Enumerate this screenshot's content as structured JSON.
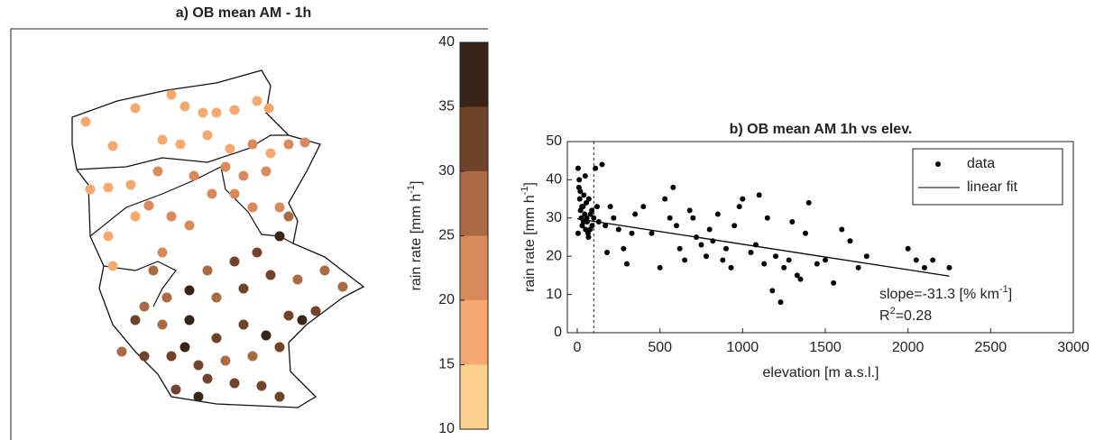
{
  "chart_data": [
    {
      "type": "map",
      "title": "a) OB mean AM - 1h",
      "values": [
        18,
        16,
        17,
        15,
        17,
        18,
        17,
        17,
        16,
        15,
        17,
        18,
        19,
        18,
        20,
        19,
        20,
        21,
        16,
        15,
        18,
        20,
        20,
        21,
        22,
        21,
        22,
        17,
        19,
        20,
        22,
        21,
        21,
        22,
        23,
        19,
        21,
        30,
        36,
        28,
        30,
        27,
        38,
        26,
        28,
        27,
        29,
        31,
        33,
        29,
        27,
        28,
        30,
        34,
        38,
        32,
        30,
        35,
        29,
        30,
        28,
        30,
        31,
        32,
        29,
        28,
        30,
        34,
        30,
        31,
        35,
        33,
        30,
        36,
        36
      ],
      "colorbar": {
        "label": [
          "rain rate [mm h",
          "-1",
          "]"
        ],
        "levels": [
          10,
          15,
          20,
          25,
          30,
          35,
          40
        ],
        "ticks": [
          10,
          15,
          20,
          25,
          30,
          35,
          40
        ],
        "colors": [
          "#fdd08b",
          "#f6a86f",
          "#d9895a",
          "#aa6a44",
          "#70432a",
          "#3a2417"
        ]
      }
    },
    {
      "type": "scatter",
      "title": "b) OB mean AM 1h vs elev.",
      "xlabel": "elevation [m a.s.l.]",
      "ylabel": [
        "rain rate [mm h",
        "-1",
        "]"
      ],
      "xlim": [
        -60,
        3000
      ],
      "ylim": [
        0,
        50
      ],
      "xticks": [
        0,
        500,
        1000,
        1500,
        2000,
        2500,
        3000
      ],
      "yticks": [
        0,
        10,
        20,
        30,
        40,
        50
      ],
      "series": [
        {
          "name": "data",
          "color": "#000000",
          "x": [
            5,
            10,
            15,
            20,
            25,
            30,
            35,
            40,
            45,
            50,
            55,
            60,
            65,
            70,
            80,
            90,
            5,
            12,
            18,
            28,
            38,
            48,
            58,
            68,
            78,
            88,
            100,
            110,
            120,
            130,
            150,
            170,
            180,
            200,
            220,
            250,
            280,
            300,
            330,
            350,
            400,
            450,
            500,
            530,
            560,
            580,
            600,
            620,
            650,
            680,
            700,
            720,
            750,
            780,
            800,
            820,
            850,
            880,
            900,
            930,
            950,
            980,
            1000,
            1050,
            1080,
            1100,
            1130,
            1150,
            1180,
            1200,
            1230,
            1250,
            1280,
            1300,
            1330,
            1350,
            1380,
            1400,
            1450,
            1500,
            1550,
            1600,
            1650,
            1700,
            1750,
            2000,
            2050,
            2100,
            2150,
            2250
          ],
          "values": [
            43,
            38,
            35,
            32,
            30,
            28,
            33,
            36,
            31,
            27,
            34,
            29,
            26,
            35,
            31,
            28,
            26,
            40,
            37,
            33,
            29,
            41,
            30,
            25,
            27,
            32,
            30,
            43,
            33,
            29,
            44,
            28,
            21,
            33,
            30,
            27,
            22,
            18,
            26,
            31,
            33,
            26,
            17,
            35,
            30,
            38,
            28,
            22,
            19,
            32,
            30,
            25,
            23,
            20,
            27,
            24,
            31,
            19,
            22,
            17,
            28,
            33,
            35,
            21,
            23,
            36,
            18,
            30,
            11,
            20,
            8,
            17,
            19,
            29,
            15,
            14,
            26,
            34,
            18,
            19,
            13,
            27,
            24,
            17,
            20,
            22,
            19,
            17,
            19,
            17
          ]
        },
        {
          "name": "linear fit",
          "color": "#000000",
          "x": [
            0,
            2250
          ],
          "values": [
            29.8,
            14.8
          ]
        }
      ],
      "vline": 100,
      "legend": "upper right",
      "annotations": [
        [
          "slope=-31.3 [% km",
          "-1",
          "]"
        ],
        [
          "R",
          "2",
          "=0.28"
        ]
      ]
    }
  ]
}
